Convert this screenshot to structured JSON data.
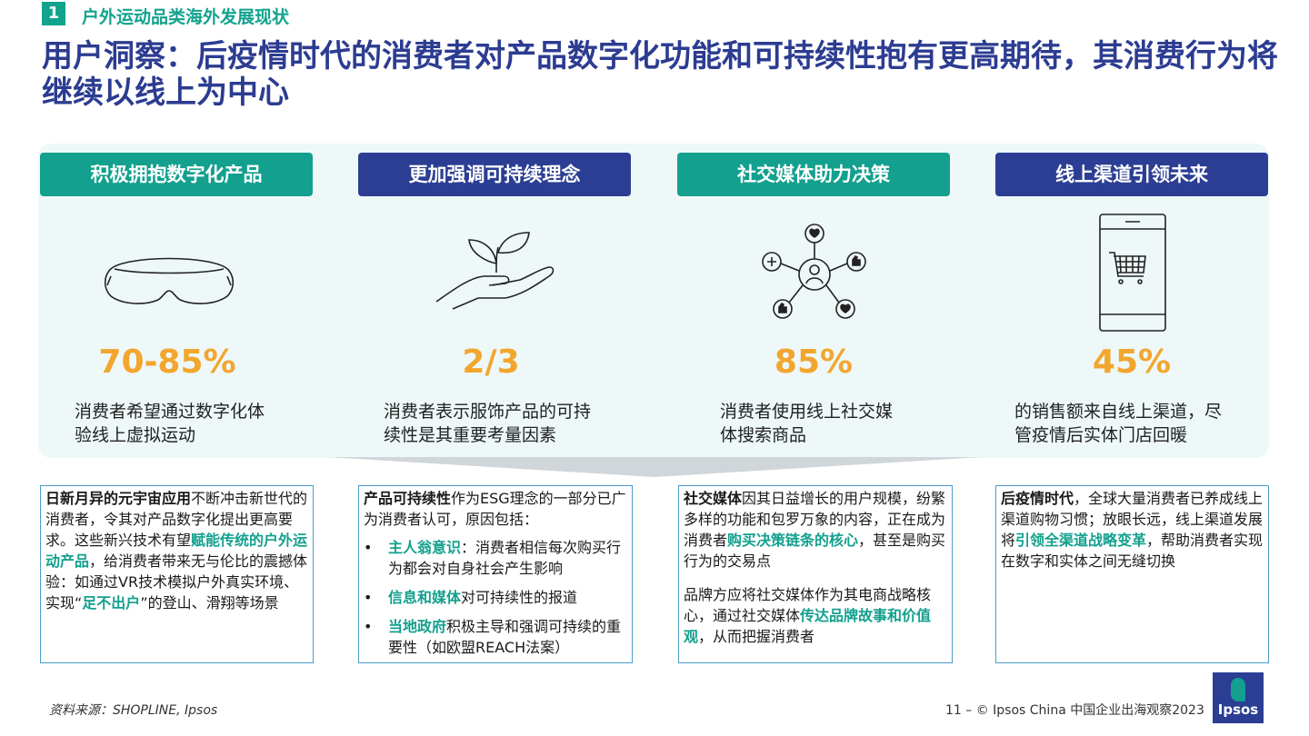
{
  "header": {
    "section_number": "1",
    "section_title": "户外运动品类海外发展现状",
    "headline": "用户洞察：后疫情时代的消费者对产品数字化功能和可持续性抱有更高期待，其消费行为将继续以线上为中心"
  },
  "cards": [
    {
      "title": "积极拥抱数字化产品",
      "icon": "vr-goggles-icon",
      "stat": "70-85%",
      "desc_line1": "消费者希望通过数字化体",
      "desc_line2": "验线上虚拟运动"
    },
    {
      "title": "更加强调可持续理念",
      "icon": "hand-sprout-icon",
      "stat": "2/3",
      "desc_line1": "消费者表示服饰产品的可持",
      "desc_line2": "续性是其重要考量因素"
    },
    {
      "title": "社交媒体助力决策",
      "icon": "social-network-icon",
      "stat": "85%",
      "desc_line1": "消费者使用线上社交媒",
      "desc_line2": "体搜索商品"
    },
    {
      "title": "线上渠道引领未来",
      "icon": "mobile-shopping-cart-icon",
      "stat": "45%",
      "desc_line1": "的销售额来自线上渠道，尽",
      "desc_line2": "管疫情后实体门店回暖"
    }
  ],
  "boxes": {
    "b1": {
      "bold1": "日新月异的元宇宙应用",
      "t1": "不断冲击新世代的消费者，令其对产品数字化提出更高要求。这些新兴技术有望",
      "hl1": "赋能传统的户外运动产品",
      "t2": "，给消费者带来无与伦比的震撼体验：如通过VR技术模拟户外真实环境、实现“",
      "hl2": "足不出户",
      "t3": "”的登山、滑翔等场景"
    },
    "b2": {
      "bold1": "产品可持续性",
      "t1": "作为ESG理念的一部分已广为消费者认可，原因包括：",
      "bullet": "•",
      "items": [
        {
          "hl": "主人翁意识",
          "text": "：消费者相信每次购买行为都会对自身社会产生影响"
        },
        {
          "hl": "信息和媒体",
          "text": "对可持续性的报道"
        },
        {
          "hl": "当地政府",
          "text": "积极主导和强调可持续的重要性（如欧盟REACH法案）"
        }
      ]
    },
    "b3": {
      "bold1": "社交媒体",
      "t1": "因其日益增长的用户规模，纷繁多样的功能和包罗万象的内容，正在成为消费者",
      "hl1": "购买决策链条的核心",
      "t2": "，甚至是购买行为的交易点",
      "p2_t1": "品牌方应将社交媒体作为其电商战略核心，通过社交媒体",
      "p2_hl": "传达品牌故事和价值观",
      "p2_t2": "，从而把握消费者"
    },
    "b4": {
      "bold1": "后疫情时代",
      "t1": "，全球大量消费者已养成线上渠道购物习惯；放眼长远，线上渠道发展将",
      "hl1": "引领全渠道战略变革",
      "t2": "，帮助消费者实现在数字和实体之间无缝切换"
    }
  },
  "footer": {
    "source": "资料来源：SHOPLINE, Ipsos",
    "page": "11 – © Ipsos China 中国企业出海观察2023",
    "logo": "Ipsos"
  },
  "colors": {
    "teal": "#13a08e",
    "navy": "#2b3e93",
    "orange": "#f3a62e"
  }
}
